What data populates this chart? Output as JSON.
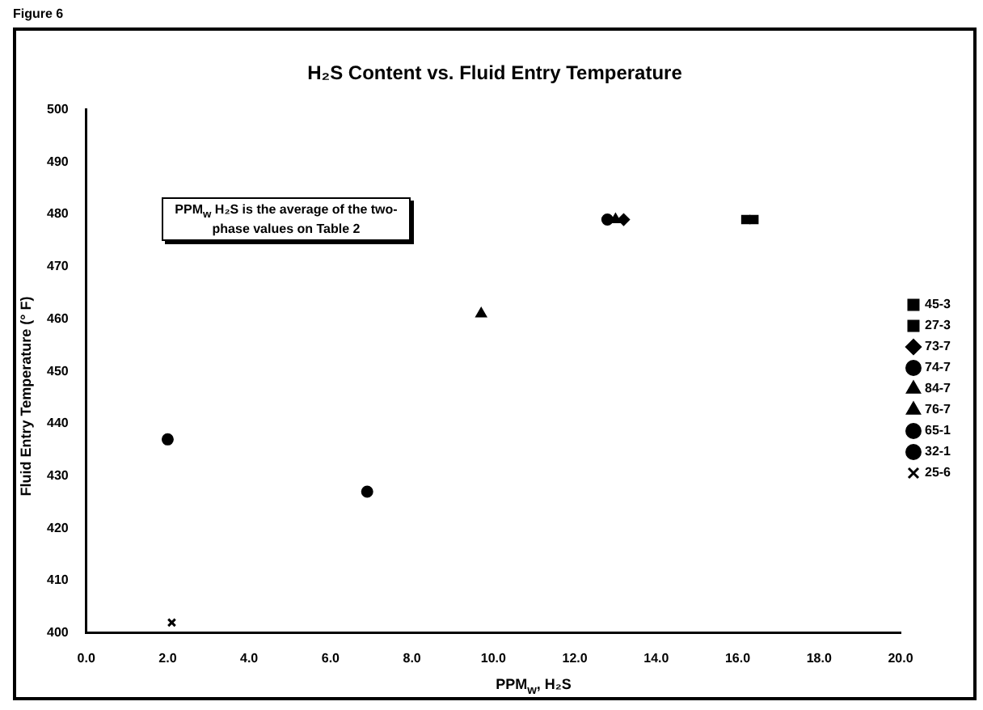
{
  "chart_data": {
    "type": "scatter",
    "title": "H₂S Content vs. Fluid Entry Temperature",
    "xlabel": "PPM$_{w}$, H₂S",
    "ylabel": "Fluid Entry Temperature (° F)",
    "annotations": [
      "Figure 6",
      {
        "text": "PPM$_{w}$ H₂S is the average of the two-phase values on Table 2"
      }
    ],
    "xlim": [
      0,
      20
    ],
    "ylim": [
      400,
      500
    ],
    "xticks": [
      {
        "value": 0,
        "label": "0.0"
      },
      {
        "value": 2,
        "label": "2.0"
      },
      {
        "value": 4,
        "label": "4.0"
      },
      {
        "value": 6,
        "label": "6.0"
      },
      {
        "value": 8,
        "label": "8.0"
      },
      {
        "value": 10,
        "label": "10.0"
      },
      {
        "value": 12,
        "label": "12.0"
      },
      {
        "value": 14,
        "label": "14.0"
      },
      {
        "value": 16,
        "label": "16.0"
      },
      {
        "value": 18,
        "label": "18.0"
      },
      {
        "value": 20,
        "label": "20.0"
      }
    ],
    "yticks": [
      400,
      410,
      420,
      430,
      440,
      450,
      460,
      470,
      480,
      490,
      500
    ],
    "grid": false,
    "legend": "right",
    "series": [
      {
        "name": "45-3",
        "color": "#000000",
        "marker": "square",
        "x": [
          16.2
        ],
        "values": [
          479
        ]
      },
      {
        "name": "27-3",
        "color": "#000000",
        "marker": "square",
        "x": [
          16.4
        ],
        "values": [
          479
        ]
      },
      {
        "name": "73-7",
        "color": "#000000",
        "marker": "diamond",
        "x": [
          13.2
        ],
        "values": [
          479
        ]
      },
      {
        "name": "74-7",
        "color": "#000000",
        "marker": "circle",
        "x": [
          12.8
        ],
        "values": [
          479
        ]
      },
      {
        "name": "84-7",
        "color": "#000000",
        "marker": "triangle",
        "x": [
          13.0
        ],
        "values": [
          479
        ]
      },
      {
        "name": "76-7",
        "color": "#000000",
        "marker": "triangle",
        "x": [
          9.7
        ],
        "values": [
          461
        ]
      },
      {
        "name": "65-1",
        "color": "#000000",
        "marker": "circle",
        "x": [
          2.0
        ],
        "values": [
          437
        ]
      },
      {
        "name": "32-1",
        "color": "#000000",
        "marker": "circle",
        "x": [
          6.9
        ],
        "values": [
          427
        ]
      },
      {
        "name": "25-6",
        "color": "#000000",
        "marker": "cross",
        "x": [
          2.1
        ],
        "values": [
          402
        ]
      }
    ]
  }
}
